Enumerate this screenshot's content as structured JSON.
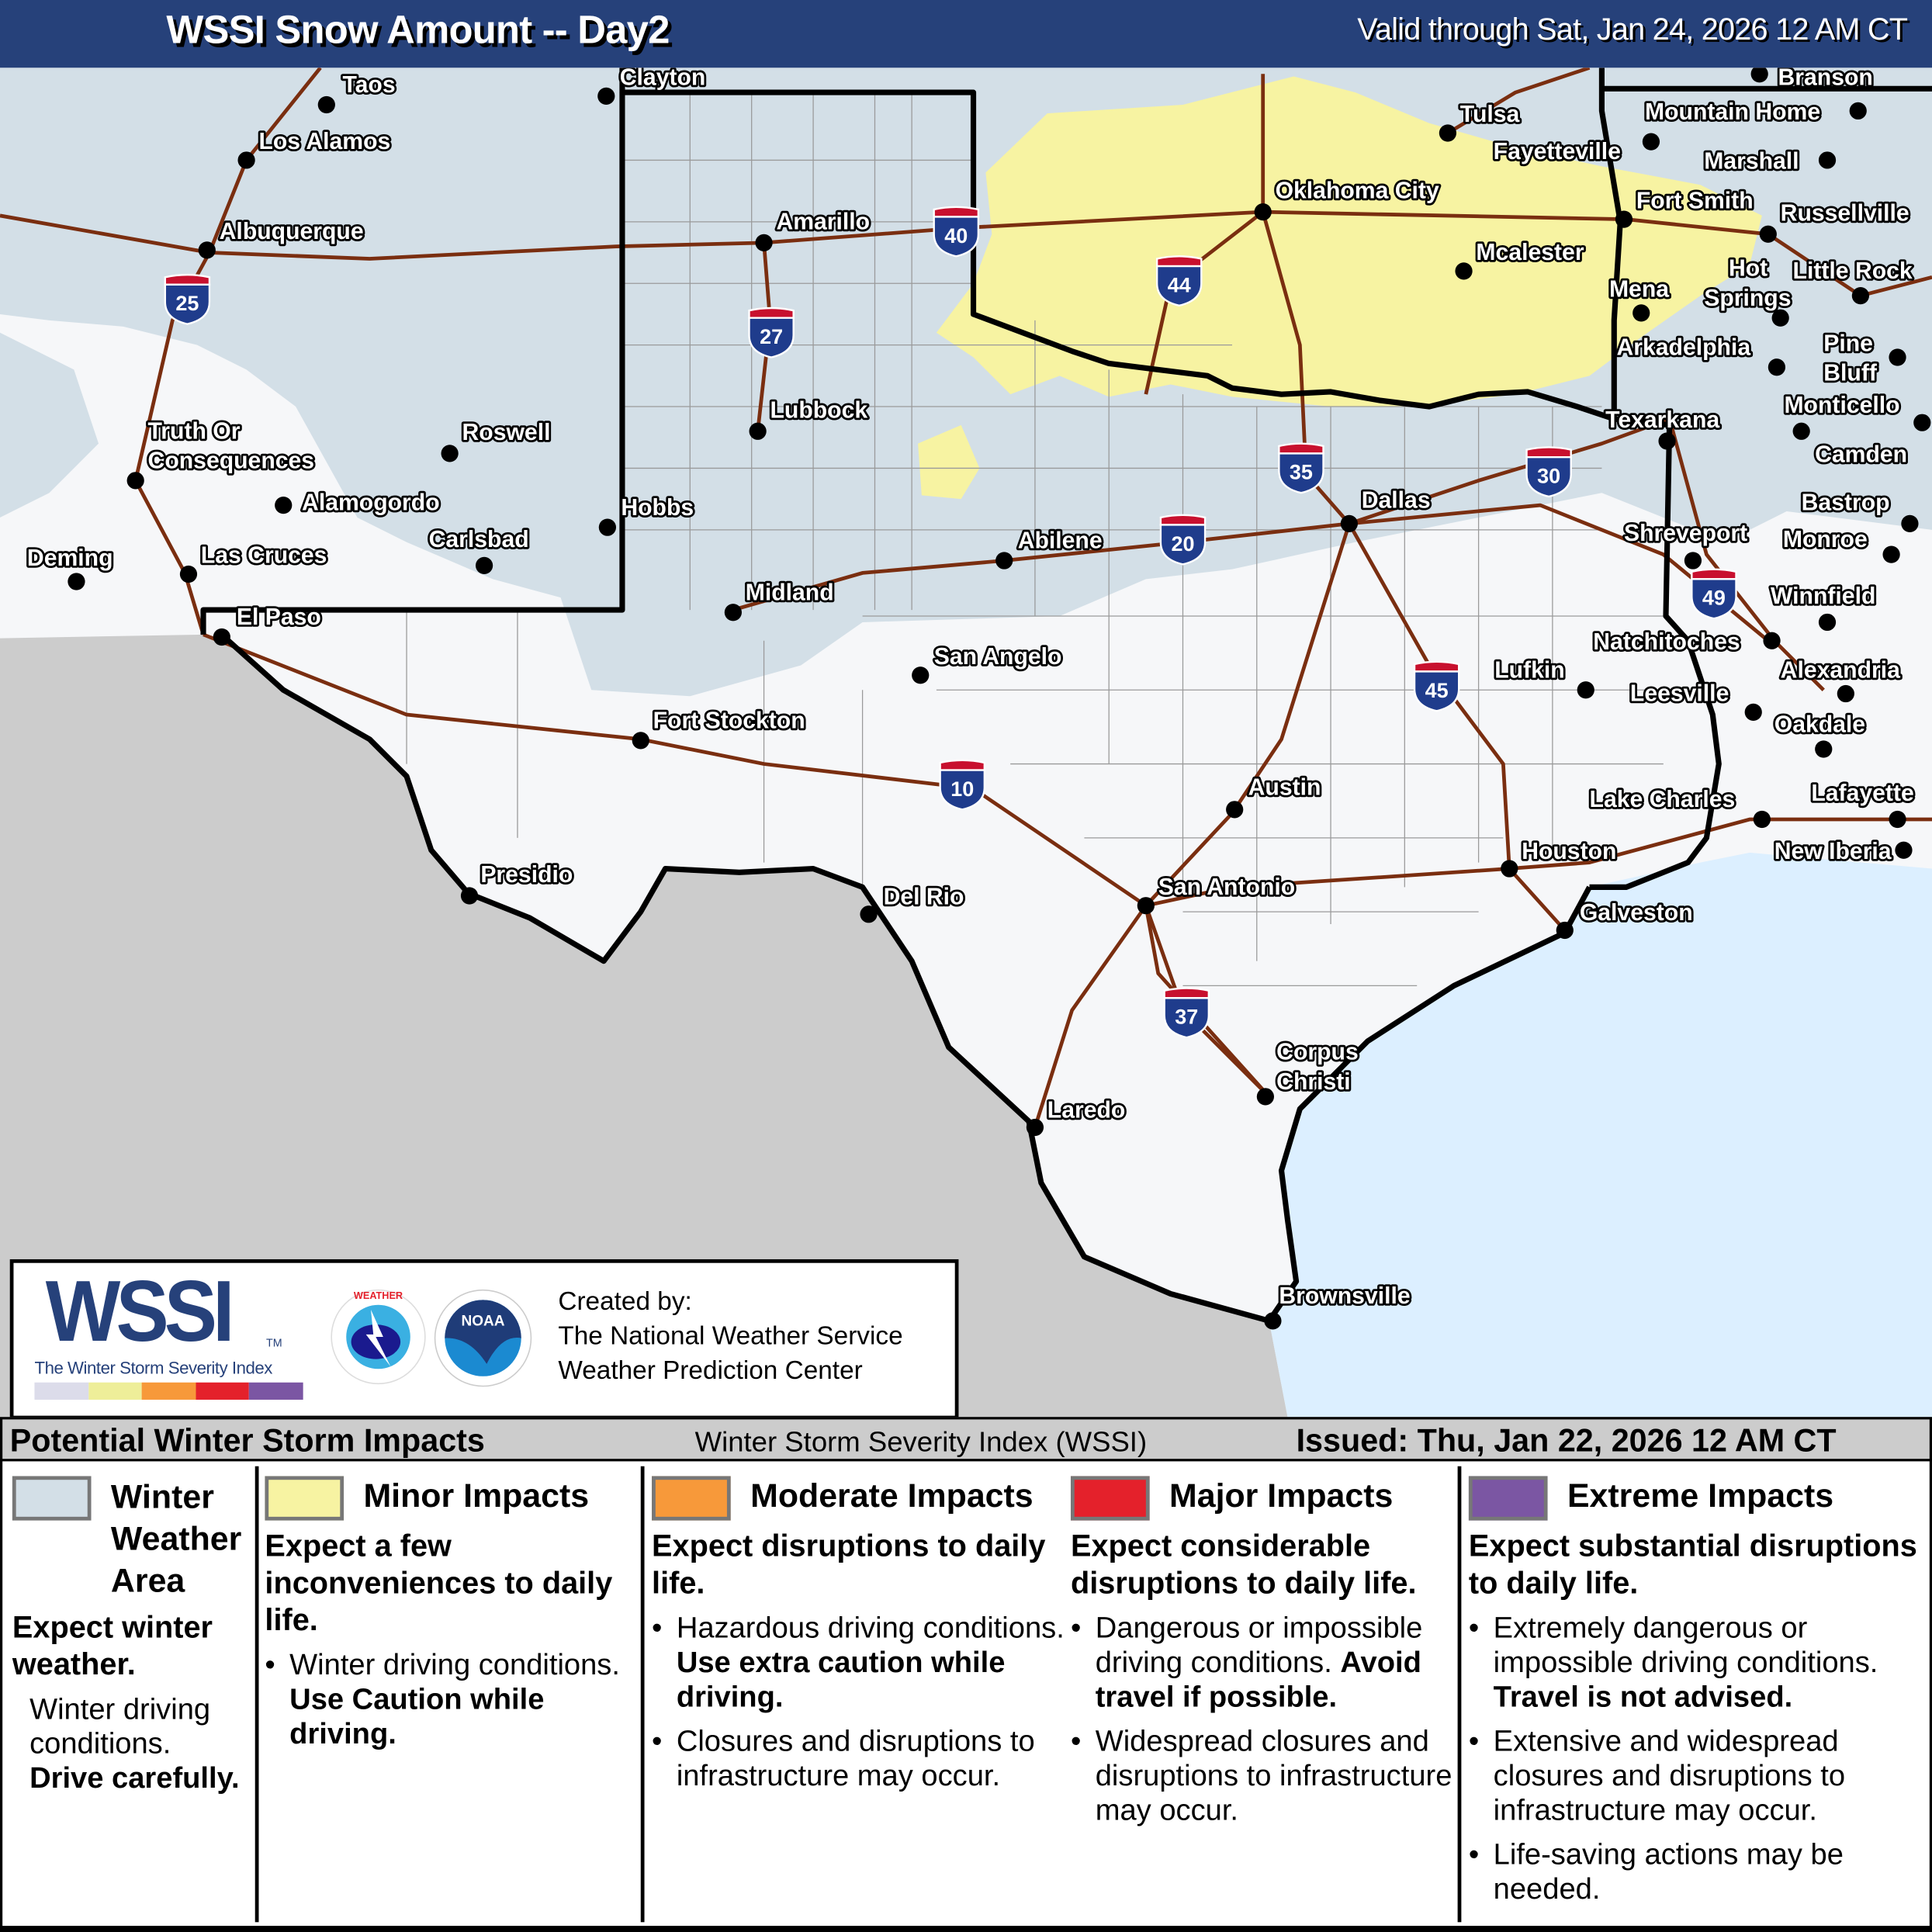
{
  "header": {
    "title": "WSSI Snow Amount -- Day2",
    "valid": "Valid through Sat, Jan 24, 2026 12 AM CT",
    "color": "#26417a"
  },
  "map": {
    "colors": {
      "winter_weather_area": "#d3dfe7",
      "minor": "#f7f3a2",
      "mexico": "#cccccc",
      "water": "#dcefff",
      "land": "#f6f7f9",
      "highway": "#7a2e10"
    },
    "cities": [
      "Taos",
      "Clayton",
      "Los Alamos",
      "Albuquerque",
      "Amarillo",
      "Oklahoma City",
      "Tulsa",
      "Fayetteville",
      "Branson",
      "Mountain Home",
      "Marshall",
      "Fort Smith",
      "Russellville",
      "Mcalester",
      "Mena",
      "Hot Springs",
      "Little Rock",
      "Arkadelphia",
      "Pine Bluff",
      "Monticello",
      "Camden",
      "Texarkana",
      "Bastrop",
      "Monroe",
      "Shreveport",
      "Winnfield",
      "Natchitoches",
      "Alexandria",
      "Leesville",
      "Oakdale",
      "Lufkin",
      "Lake Charles",
      "Lafayette",
      "New Iberia",
      "Houston",
      "Galveston",
      "Dallas",
      "Abilene",
      "Midland",
      "San Angelo",
      "Fort Stockton",
      "Austin",
      "San Antonio",
      "Del Rio",
      "Presidio",
      "Laredo",
      "Corpus Christi",
      "Brownsville",
      "El Paso",
      "Las Cruces",
      "Deming",
      "Alamogordo",
      "Carlsbad",
      "Roswell",
      "Hobbs",
      "Lubbock",
      "Truth Or Consequences"
    ],
    "interstates": [
      "25",
      "27",
      "40",
      "44",
      "35",
      "30",
      "20",
      "49",
      "45",
      "10",
      "37"
    ]
  },
  "logo": {
    "wordmark": "WSSI",
    "tm": "TM",
    "tagline": "The Winter Storm Severity Index",
    "scale_colors": [
      "#dcdcea",
      "#eeee99",
      "#f7993a",
      "#e4212b",
      "#7b56a3"
    ],
    "created_label": "Created by:",
    "org1": "The National Weather Service",
    "org2": "Weather Prediction Center",
    "nws_seal": "NATIONAL WEATHER SERVICE",
    "noaa_seal": "NOAA"
  },
  "legend": {
    "heading": "Potential Winter Storm Impacts",
    "index_name": "Winter Storm Severity Index (WSSI)",
    "issued": "Issued: Thu, Jan 22, 2026 12 AM CT",
    "categories": [
      {
        "title": "Winter Weather Area",
        "color": "#d3dfe7",
        "summary": "Expect winter weather.",
        "text": "Winter driving conditions.",
        "bold": "Drive carefully."
      },
      {
        "title": "Minor Impacts",
        "color": "#f7f3a2",
        "summary": "Expect a few inconveniences to daily life.",
        "b1": "Winter driving conditions.",
        "b1_bold": "Use Caution while driving."
      },
      {
        "title": "Moderate Impacts",
        "color": "#f7993a",
        "summary": "Expect disruptions to daily life.",
        "b1": "Hazardous driving conditions.",
        "b1_bold": "Use extra caution while driving.",
        "b2": "Closures and disruptions to infrastructure may occur."
      },
      {
        "title": "Major Impacts",
        "color": "#e4212b",
        "summary": "Expect considerable disruptions to daily life.",
        "b1": "Dangerous or impossible driving conditions.",
        "b1_bold": "Avoid travel if possible.",
        "b2": "Widespread closures and disruptions to infrastructure may occur."
      },
      {
        "title": "Extreme Impacts",
        "color": "#7b56a3",
        "summary": "Expect substantial disruptions to daily life.",
        "b1": "Extremely dangerous or impossible driving conditions.",
        "b1_bold": "Travel is not advised.",
        "b2": "Extensive and widespread closures and disruptions to infrastructure may occur.",
        "b3": "Life-saving actions may be needed."
      }
    ]
  }
}
